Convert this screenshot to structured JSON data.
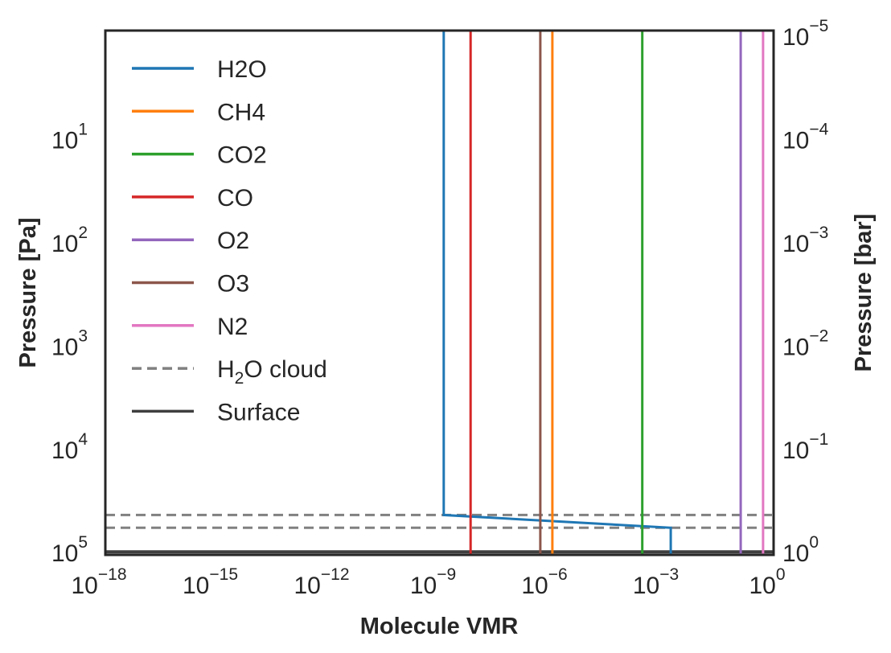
{
  "chart_data": {
    "type": "line",
    "xlabel": "Molecule VMR",
    "ylabel": "Pressure [Pa]",
    "ylabel_right": "Pressure [bar]",
    "xscale": "log",
    "yscale": "log",
    "y_inverted": true,
    "xlim": [
      1e-18,
      1
    ],
    "ylim": [
      107000,
      0.9
    ],
    "ylim_right_bar": [
      1.07,
      9e-06
    ],
    "grid": false,
    "legend_placement": "top-left",
    "x_ticks": [
      {
        "value": 1e-18,
        "base": "10",
        "exp": "−18"
      },
      {
        "value": 1e-15,
        "base": "10",
        "exp": "−15"
      },
      {
        "value": 1e-12,
        "base": "10",
        "exp": "−12"
      },
      {
        "value": 1e-09,
        "base": "10",
        "exp": "−9"
      },
      {
        "value": 1e-06,
        "base": "10",
        "exp": "−6"
      },
      {
        "value": 0.001,
        "base": "10",
        "exp": "−3"
      },
      {
        "value": 1,
        "base": "10",
        "exp": "0"
      }
    ],
    "y_ticks_left": [
      {
        "value": 10,
        "base": "10",
        "exp": "1"
      },
      {
        "value": 100,
        "base": "10",
        "exp": "2"
      },
      {
        "value": 1000,
        "base": "10",
        "exp": "3"
      },
      {
        "value": 10000,
        "base": "10",
        "exp": "4"
      },
      {
        "value": 100000,
        "base": "10",
        "exp": "5"
      }
    ],
    "y_ticks_right": [
      {
        "value": 1e-05,
        "base": "10",
        "exp": "−5"
      },
      {
        "value": 0.0001,
        "base": "10",
        "exp": "−4"
      },
      {
        "value": 0.001,
        "base": "10",
        "exp": "−3"
      },
      {
        "value": 0.01,
        "base": "10",
        "exp": "−2"
      },
      {
        "value": 0.1,
        "base": "10",
        "exp": "−1"
      },
      {
        "value": 1,
        "base": "10",
        "exp": "0"
      }
    ],
    "series": [
      {
        "name": "H2O",
        "color": "#1f77b4",
        "style": "solid",
        "points": [
          [
            1.3e-09,
            0.9
          ],
          [
            1.3e-09,
            44000
          ],
          [
            0.0017,
            58500
          ],
          [
            0.0017,
            107000
          ]
        ]
      },
      {
        "name": "CH4",
        "color": "#ff7f0e",
        "style": "solid",
        "points": [
          [
            1.1e-06,
            0.9
          ],
          [
            1.1e-06,
            107000
          ]
        ]
      },
      {
        "name": "CO2",
        "color": "#2ca02c",
        "style": "solid",
        "points": [
          [
            0.00029,
            0.9
          ],
          [
            0.00029,
            107000
          ]
        ]
      },
      {
        "name": "CO",
        "color": "#d62728",
        "style": "solid",
        "points": [
          [
            6.9e-09,
            0.9
          ],
          [
            6.9e-09,
            107000
          ]
        ]
      },
      {
        "name": "O2",
        "color": "#9467bd",
        "style": "solid",
        "points": [
          [
            0.13,
            0.9
          ],
          [
            0.13,
            107000
          ]
        ]
      },
      {
        "name": "O3",
        "color": "#8c564b",
        "style": "solid",
        "points": [
          [
            5.2e-07,
            0.9
          ],
          [
            5.2e-07,
            107000
          ]
        ]
      },
      {
        "name": "N2",
        "color": "#e377c2",
        "style": "solid",
        "points": [
          [
            0.52,
            0.9
          ],
          [
            0.52,
            107000
          ]
        ]
      }
    ],
    "hlines": [
      {
        "name": "H2O cloud",
        "legend_main": "H",
        "legend_sub": "2",
        "legend_rest": "O cloud",
        "color": "#808080",
        "style": "dashed",
        "values": [
          44000,
          58500
        ]
      },
      {
        "name": "Surface",
        "color": "#3f3f3f",
        "style": "solid",
        "values": [
          100000
        ]
      }
    ]
  }
}
